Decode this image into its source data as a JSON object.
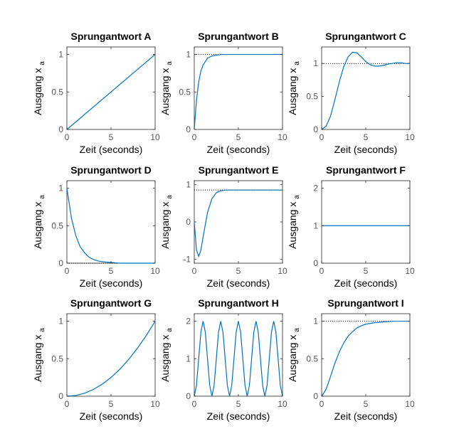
{
  "figure": {
    "background": "#ffffff",
    "line_color": "#0072BD",
    "ref_line_color": "#000000",
    "axis_color": "#262626"
  },
  "chart_data": [
    {
      "id": "A",
      "type": "line",
      "title": "Sprungantwort A",
      "xlabel": "Zeit (seconds)",
      "ylabel": "Ausgang x",
      "ylabel_sub": "a",
      "xlim": [
        0,
        10
      ],
      "ylim": [
        0,
        1.1
      ],
      "xticks": [
        0,
        5,
        10
      ],
      "yticks": [
        0,
        0.5,
        1
      ],
      "ytick_labels": [
        "0",
        "0.5",
        "1"
      ],
      "x": [
        0,
        10
      ],
      "y": [
        0,
        1
      ],
      "reference": null
    },
    {
      "id": "B",
      "type": "line",
      "title": "Sprungantwort B",
      "xlabel": "Zeit (seconds)",
      "ylabel": "Ausgang x",
      "ylabel_sub": "a",
      "xlim": [
        0,
        10
      ],
      "ylim": [
        0,
        1.1
      ],
      "xticks": [
        0,
        5,
        10
      ],
      "yticks": [
        0,
        0.5,
        1
      ],
      "ytick_labels": [
        "0",
        "0.5",
        "1"
      ],
      "x": [
        0,
        0.25,
        0.5,
        0.75,
        1,
        1.5,
        2,
        2.5,
        3,
        4,
        5,
        6,
        8,
        10
      ],
      "y": [
        0,
        0.39,
        0.63,
        0.78,
        0.86,
        0.95,
        0.98,
        0.99,
        1.0,
        1.0,
        1.0,
        1.0,
        1.0,
        1.0
      ],
      "reference": 1
    },
    {
      "id": "C",
      "type": "line",
      "title": "Sprungantwort C",
      "xlabel": "Zeit (seconds)",
      "ylabel": "Ausgang x",
      "ylabel_sub": "a",
      "xlim": [
        0,
        10
      ],
      "ylim": [
        0,
        1.25
      ],
      "xticks": [
        0,
        5,
        10
      ],
      "yticks": [
        0,
        0.5,
        1
      ],
      "ytick_labels": [
        "0",
        "0.5",
        "1"
      ],
      "x": [
        0,
        0.5,
        1,
        1.5,
        2,
        2.5,
        3,
        3.5,
        4,
        4.5,
        5,
        5.5,
        6,
        6.5,
        7,
        7.5,
        8,
        8.5,
        9,
        9.5,
        10
      ],
      "y": [
        0,
        0.05,
        0.2,
        0.45,
        0.72,
        0.95,
        1.1,
        1.17,
        1.16,
        1.1,
        1.03,
        0.98,
        0.96,
        0.96,
        0.97,
        0.99,
        1.0,
        1.01,
        1.01,
        1.0,
        1.0
      ],
      "reference": 1
    },
    {
      "id": "D",
      "type": "line",
      "title": "Sprungantwort D",
      "xlabel": "Zeit (seconds)",
      "ylabel": "Ausgang x",
      "ylabel_sub": "a",
      "xlim": [
        0,
        10
      ],
      "ylim": [
        0,
        1.1
      ],
      "xticks": [
        0,
        5,
        10
      ],
      "yticks": [
        0,
        0.5,
        1
      ],
      "ytick_labels": [
        "0",
        "0.5",
        "1"
      ],
      "x": [
        0,
        0.5,
        1,
        1.5,
        2,
        2.5,
        3,
        3.5,
        4,
        5,
        6,
        8,
        10
      ],
      "y": [
        1,
        0.61,
        0.37,
        0.22,
        0.14,
        0.08,
        0.05,
        0.03,
        0.02,
        0.01,
        0,
        0,
        0
      ],
      "reference": 0
    },
    {
      "id": "E",
      "type": "line",
      "title": "Sprungantwort E",
      "xlabel": "Zeit (seconds)",
      "ylabel": "Ausgang x",
      "ylabel_sub": "a",
      "xlim": [
        0,
        10
      ],
      "ylim": [
        -1.1,
        1.1
      ],
      "xticks": [
        0,
        5,
        10
      ],
      "yticks": [
        -1,
        0,
        1
      ],
      "ytick_labels": [
        "-1",
        "0",
        "1"
      ],
      "x": [
        0,
        0.25,
        0.5,
        0.75,
        1,
        1.5,
        2,
        2.5,
        3,
        3.5,
        4,
        5,
        6,
        8,
        10
      ],
      "y": [
        0,
        -0.75,
        -0.92,
        -0.75,
        -0.4,
        0.25,
        0.62,
        0.78,
        0.83,
        0.85,
        0.85,
        0.85,
        0.85,
        0.85,
        0.85
      ],
      "reference": 0.85
    },
    {
      "id": "F",
      "type": "line",
      "title": "Sprungantwort F",
      "xlabel": "Zeit (seconds)",
      "ylabel": "Ausgang x",
      "ylabel_sub": "a",
      "xlim": [
        0,
        10
      ],
      "ylim": [
        0,
        2.2
      ],
      "xticks": [
        0,
        5,
        10
      ],
      "yticks": [
        0,
        1,
        2
      ],
      "ytick_labels": [
        "0",
        "1",
        "2"
      ],
      "x": [
        0,
        10
      ],
      "y": [
        1,
        1
      ],
      "reference": null
    },
    {
      "id": "G",
      "type": "line",
      "title": "Sprungantwort G",
      "xlabel": "Zeit (seconds)",
      "ylabel": "Ausgang x",
      "ylabel_sub": "a",
      "xlim": [
        0,
        10
      ],
      "ylim": [
        0,
        1.1
      ],
      "xticks": [
        0,
        5,
        10
      ],
      "yticks": [
        0,
        0.5,
        1
      ],
      "ytick_labels": [
        "0",
        "0.5",
        "1"
      ],
      "x": [
        0,
        1,
        2,
        3,
        4,
        5,
        6,
        7,
        8,
        9,
        10
      ],
      "y": [
        0,
        0.01,
        0.04,
        0.09,
        0.16,
        0.25,
        0.36,
        0.49,
        0.64,
        0.81,
        1.0
      ],
      "reference": null
    },
    {
      "id": "H",
      "type": "line",
      "title": "Sprungantwort H",
      "xlabel": "Zeit (seconds)",
      "ylabel": "Ausgang x",
      "ylabel_sub": "a",
      "xlim": [
        0,
        10
      ],
      "ylim": [
        0,
        2.2
      ],
      "xticks": [
        0,
        5,
        10
      ],
      "yticks": [
        0,
        1,
        2
      ],
      "ytick_labels": [
        "0",
        "1",
        "2"
      ],
      "x": [
        0,
        0.25,
        0.5,
        0.75,
        1,
        1.25,
        1.5,
        1.75,
        2,
        2.25,
        2.5,
        2.75,
        3,
        3.25,
        3.5,
        3.75,
        4,
        4.25,
        4.5,
        4.75,
        5,
        5.25,
        5.5,
        5.75,
        6,
        6.25,
        6.5,
        6.75,
        7,
        7.25,
        7.5,
        7.75,
        8,
        8.25,
        8.5,
        8.75,
        9,
        9.25,
        9.5,
        9.75,
        10
      ],
      "y": [
        0,
        0.29,
        1,
        1.71,
        2,
        1.71,
        1,
        0.29,
        0,
        0.29,
        1,
        1.71,
        2,
        1.71,
        1,
        0.29,
        0,
        0.29,
        1,
        1.71,
        2,
        1.71,
        1,
        0.29,
        0,
        0.29,
        1,
        1.71,
        2,
        1.71,
        1,
        0.29,
        0,
        0.29,
        1,
        1.71,
        2,
        1.71,
        1,
        0.29,
        0
      ],
      "reference": null
    },
    {
      "id": "I",
      "type": "line",
      "title": "Sprungantwort I",
      "xlabel": "Zeit (seconds)",
      "ylabel": "Ausgang x",
      "ylabel_sub": "a",
      "xlim": [
        0,
        10
      ],
      "ylim": [
        0,
        1.1
      ],
      "xticks": [
        0,
        5,
        10
      ],
      "yticks": [
        0,
        0.5,
        1
      ],
      "ytick_labels": [
        "0",
        "0.5",
        "1"
      ],
      "x": [
        0,
        0.5,
        1,
        1.5,
        2,
        2.5,
        3,
        3.5,
        4,
        4.5,
        5,
        6,
        7,
        8,
        10
      ],
      "y": [
        0,
        0.09,
        0.26,
        0.44,
        0.59,
        0.71,
        0.8,
        0.86,
        0.91,
        0.94,
        0.96,
        0.98,
        0.99,
        1.0,
        1.0
      ],
      "reference": 1
    }
  ]
}
